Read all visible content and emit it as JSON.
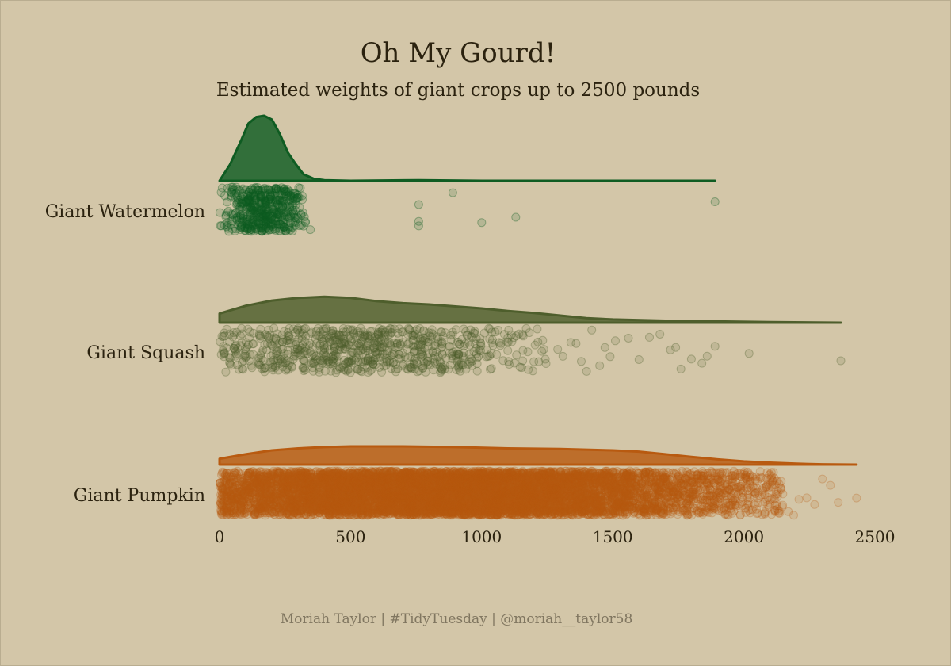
{
  "chart_data": {
    "type": "raincloud",
    "title": "Oh My Gourd!",
    "subtitle": "Estimated weights of giant crops up to 2500 pounds",
    "caption": "Moriah Taylor | #TidyTuesday | @moriah__taylor58",
    "xlabel": "",
    "ylabel": "",
    "xlim": [
      0,
      2500
    ],
    "x_ticks": [
      0,
      500,
      1000,
      1500,
      2000,
      2500
    ],
    "x_tick_labels": [
      "0",
      "500",
      "1000",
      "1500",
      "2000",
      "2500"
    ],
    "grid": false,
    "series": [
      {
        "name": "Giant Watermelon",
        "color": "#0f5c22",
        "point_alpha": 0.15,
        "density": [
          [
            0,
            0.0
          ],
          [
            40,
            0.25
          ],
          [
            80,
            0.6
          ],
          [
            110,
            0.88
          ],
          [
            140,
            0.98
          ],
          [
            170,
            1.0
          ],
          [
            200,
            0.94
          ],
          [
            230,
            0.72
          ],
          [
            260,
            0.44
          ],
          [
            290,
            0.26
          ],
          [
            320,
            0.1
          ],
          [
            360,
            0.03
          ],
          [
            400,
            0.01
          ],
          [
            500,
            0.0
          ],
          [
            760,
            0.01
          ],
          [
            1000,
            0.0
          ],
          [
            1890,
            0.0
          ]
        ],
        "point_count": 520,
        "bulk_range": [
          0,
          350
        ],
        "bulk_mean": 175,
        "bulk_sd": 80,
        "outliers": [
          760,
          760,
          760,
          890,
          1000,
          1130,
          1890
        ]
      },
      {
        "name": "Giant Squash",
        "color": "#4e5e2c",
        "point_alpha": 0.14,
        "density": [
          [
            0,
            0.14
          ],
          [
            100,
            0.26
          ],
          [
            200,
            0.34
          ],
          [
            300,
            0.38
          ],
          [
            400,
            0.4
          ],
          [
            500,
            0.38
          ],
          [
            600,
            0.33
          ],
          [
            700,
            0.3
          ],
          [
            800,
            0.28
          ],
          [
            900,
            0.25
          ],
          [
            1000,
            0.22
          ],
          [
            1100,
            0.18
          ],
          [
            1200,
            0.15
          ],
          [
            1300,
            0.11
          ],
          [
            1400,
            0.07
          ],
          [
            1500,
            0.05
          ],
          [
            1700,
            0.03
          ],
          [
            1900,
            0.02
          ],
          [
            2100,
            0.01
          ],
          [
            2370,
            0.0
          ]
        ],
        "point_count": 800,
        "bulk_range": [
          0,
          1250
        ],
        "bulk_mean": 550,
        "bulk_sd": 350,
        "outliers": [
          1290,
          1310,
          1340,
          1360,
          1380,
          1400,
          1420,
          1450,
          1470,
          1490,
          1510,
          1560,
          1600,
          1640,
          1680,
          1720,
          1740,
          1760,
          1800,
          1840,
          1860,
          1890,
          2020,
          2370
        ]
      },
      {
        "name": "Giant Pumpkin",
        "color": "#b85a10",
        "point_alpha": 0.12,
        "density": [
          [
            0,
            0.09
          ],
          [
            100,
            0.16
          ],
          [
            200,
            0.22
          ],
          [
            300,
            0.25
          ],
          [
            400,
            0.27
          ],
          [
            500,
            0.28
          ],
          [
            700,
            0.28
          ],
          [
            900,
            0.27
          ],
          [
            1100,
            0.25
          ],
          [
            1300,
            0.24
          ],
          [
            1500,
            0.22
          ],
          [
            1600,
            0.2
          ],
          [
            1700,
            0.16
          ],
          [
            1800,
            0.12
          ],
          [
            1900,
            0.08
          ],
          [
            2000,
            0.05
          ],
          [
            2100,
            0.03
          ],
          [
            2200,
            0.015
          ],
          [
            2300,
            0.005
          ],
          [
            2430,
            0.0
          ]
        ],
        "point_count": 9000,
        "bulk_range": [
          0,
          2150
        ],
        "bulk_mean": 900,
        "bulk_sd": 560,
        "outliers": [
          2060,
          2080,
          2100,
          2120,
          2140,
          2170,
          2190,
          2210,
          2240,
          2270,
          2300,
          2330,
          2360,
          2430
        ]
      }
    ]
  }
}
